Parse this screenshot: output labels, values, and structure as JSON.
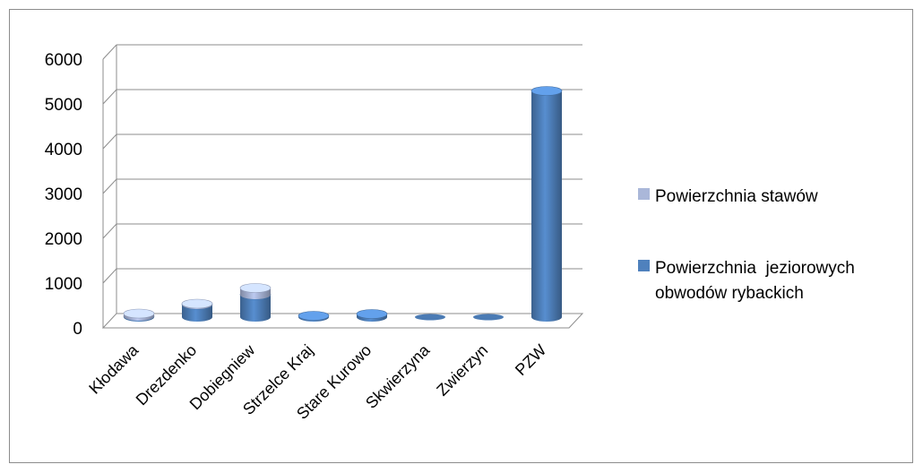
{
  "chart_data": {
    "type": "bar",
    "stacked": true,
    "three_d": true,
    "categories": [
      "Kłodawa",
      "Drezdenko",
      "Dobiegniew",
      "Strzelce Kraj",
      "Stare Kurowo",
      "Skwierzyna",
      "Zwierzyn",
      "PZW"
    ],
    "series": [
      {
        "name": "Powierzchnia  jeziorowych obwodów rybackich",
        "name_lines": [
          "Powierzchnia  jeziorowych",
          "obwodów rybackich"
        ],
        "color": "#4f81bd",
        "values": [
          20,
          280,
          500,
          30,
          70,
          0,
          0,
          5050
        ]
      },
      {
        "name": "Powierzchnia stawów",
        "name_lines": [
          "Powierzchnia stawów"
        ],
        "color": "#aab7d9",
        "values": [
          60,
          20,
          150,
          0,
          0,
          0,
          0,
          0
        ]
      }
    ],
    "y_ticks": [
      "0",
      "1000",
      "2000",
      "3000",
      "4000",
      "5000",
      "6000"
    ],
    "ylim": [
      0,
      6000
    ],
    "grid": true,
    "legend_position": "right",
    "title": "",
    "xlabel": "",
    "ylabel": ""
  }
}
